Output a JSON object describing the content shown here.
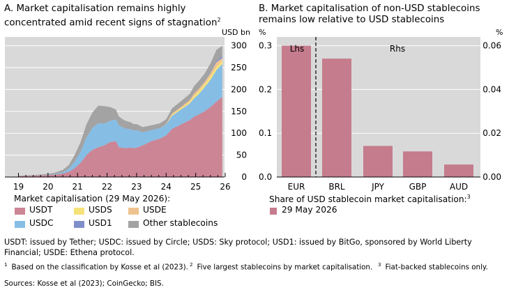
{
  "panel_a": {
    "title": "A. Market capitalisation remains highly concentrated amid recent signs of stagnation",
    "title_sup": "2",
    "unit": "USD bn",
    "legend_title": "Market capitalisation (29 May 2026):",
    "colors": {
      "USDT": "#cc8595",
      "USDS": "#f5e27a",
      "USDE": "#efc38f",
      "USDC": "#86bde5",
      "USD1": "#7f8fc9",
      "Other stablecoins": "#a3a3a3",
      "plot_bg": "#d9d9d9"
    }
  },
  "panel_b": {
    "title": "B. Market capitalisation of non-USD stablecoins remains low relative to USD stablecoins",
    "lhs_unit": "%",
    "rhs_unit": "%",
    "lhs_label": "Lhs",
    "rhs_label": "Rhs",
    "legend_title": "Share of USD stablecoin market capitalisation:",
    "legend_title_sup": "3",
    "legend_item": "29 May 2026",
    "bar_color": "#c57c8c"
  },
  "chart_data": [
    {
      "type": "area",
      "stacked": true,
      "title": "A. Market capitalisation remains highly concentrated amid recent signs of stagnation",
      "ylabel": "USD bn",
      "ylim": [
        0,
        320
      ],
      "yticks": [
        0,
        50,
        100,
        150,
        200,
        250,
        300
      ],
      "xtick_labels": [
        "19",
        "20",
        "21",
        "22",
        "23",
        "24",
        "25",
        "26"
      ],
      "x": [
        2019.0,
        2019.5,
        2019.9,
        2020.2,
        2020.5,
        2020.7,
        2020.9,
        2021.1,
        2021.3,
        2021.5,
        2021.7,
        2021.9,
        2022.1,
        2022.3,
        2022.4,
        2022.6,
        2022.8,
        2022.9,
        2023.0,
        2023.2,
        2023.5,
        2023.8,
        2024.0,
        2024.2,
        2024.5,
        2024.8,
        2024.95,
        2025.1,
        2025.3,
        2025.5,
        2025.7,
        2025.9
      ],
      "series": [
        {
          "name": "USDT",
          "values": [
            2,
            3,
            4,
            5,
            8,
            12,
            20,
            32,
            50,
            62,
            68,
            72,
            80,
            82,
            68,
            66,
            67,
            66,
            67,
            72,
            82,
            88,
            95,
            110,
            120,
            130,
            138,
            143,
            150,
            160,
            172,
            183
          ]
        },
        {
          "name": "USDC",
          "values": [
            0,
            0,
            0.5,
            1,
            3,
            7,
            15,
            25,
            40,
            50,
            55,
            50,
            48,
            50,
            50,
            45,
            42,
            40,
            40,
            30,
            25,
            24,
            25,
            30,
            34,
            38,
            42,
            46,
            55,
            62,
            72,
            75
          ]
        },
        {
          "name": "USDS",
          "values": [
            0,
            0,
            0,
            0,
            0,
            0,
            0,
            0,
            0,
            0,
            0,
            0,
            0,
            0,
            0,
            0,
            0,
            0,
            0,
            0,
            0,
            0,
            0,
            3,
            3,
            4,
            6,
            6,
            7,
            8,
            8,
            8
          ]
        },
        {
          "name": "USDE",
          "values": [
            0,
            0,
            0,
            0,
            0,
            0,
            0,
            0,
            0,
            0,
            0,
            0,
            0,
            0,
            0,
            0,
            0,
            0,
            0,
            0,
            0,
            0,
            1,
            2,
            3,
            4,
            5,
            6,
            5,
            7,
            10,
            6
          ]
        },
        {
          "name": "USD1",
          "values": [
            0,
            0,
            0,
            0,
            0,
            0,
            0,
            0,
            0,
            0,
            0,
            0,
            0,
            0,
            0,
            0,
            0,
            0,
            0,
            0,
            0,
            0,
            0,
            0,
            0,
            0,
            0,
            0,
            1,
            2,
            3,
            4
          ]
        },
        {
          "name": "Other stablecoins",
          "values": [
            1,
            1.5,
            2,
            3,
            5,
            8,
            15,
            22,
            30,
            35,
            40,
            40,
            32,
            22,
            20,
            18,
            16,
            15,
            14,
            12,
            11,
            11,
            11,
            12,
            13,
            14,
            17,
            18,
            18,
            20,
            25,
            24
          ]
        }
      ]
    },
    {
      "type": "bar",
      "title": "B. Market capitalisation of non-USD stablecoins remains low relative to USD stablecoins",
      "categories": [
        "EUR",
        "BRL",
        "JPY",
        "GBP",
        "AUD"
      ],
      "series": [
        {
          "name": "29 May 2026",
          "values": [
            0.3,
            0.0541,
            0.0142,
            0.0117,
            0.0057
          ]
        }
      ],
      "axis": [
        "lhs",
        "rhs",
        "rhs",
        "rhs",
        "rhs"
      ],
      "lhs_ylim": [
        0,
        0.32
      ],
      "lhs_yticks": [
        0.0,
        0.1,
        0.2,
        0.3
      ],
      "rhs_ylim": [
        0,
        0.064
      ],
      "rhs_yticks": [
        0.0,
        0.02,
        0.04,
        0.06
      ],
      "lhs_ytick_labels": [
        "0.0",
        "0.1",
        "0.2",
        "0.3"
      ],
      "rhs_ytick_labels": [
        "0.00",
        "0.02",
        "0.04",
        "0.06"
      ]
    }
  ],
  "notes": {
    "definitions": "USDT: issued by Tether; USDC: issued by Circle; USDS: Sky protocol; USD1: issued by BitGo, sponsored by World Liberty Financial; USDE: Ethena protocol.",
    "footnotes": [
      {
        "num": "1",
        "text": "Based on the classification by Kosse et al (2023)."
      },
      {
        "num": "2",
        "text": "Five largest stablecoins by market capitalisation."
      },
      {
        "num": "3",
        "text": "Fiat-backed stablecoins only."
      }
    ],
    "sources": "Sources: Kosse et al (2023); CoinGecko; BIS."
  }
}
